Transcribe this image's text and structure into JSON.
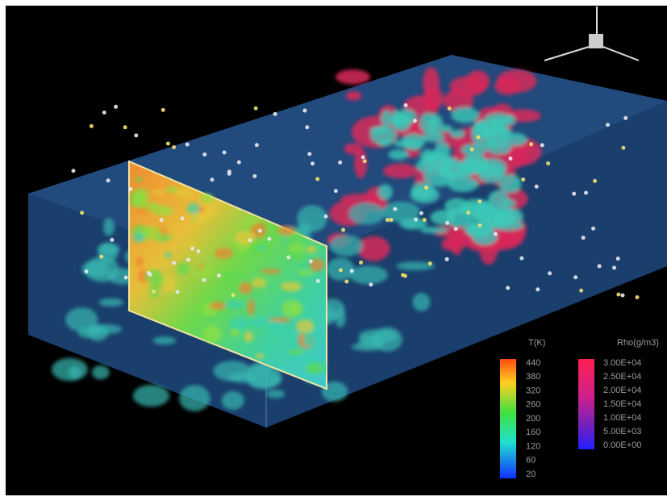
{
  "legends": [
    {
      "title": "T(K)",
      "labels": [
        "440",
        "380",
        "320",
        "260",
        "200",
        "160",
        "120",
        "60",
        "20"
      ]
    },
    {
      "title": "Rho(g/m3)",
      "labels": [
        "3.00E+04",
        "2.50E+04",
        "2.00E+04",
        "1.50E+04",
        "1.00E+04",
        "5.00E+03",
        "0.00E+00"
      ]
    }
  ]
}
